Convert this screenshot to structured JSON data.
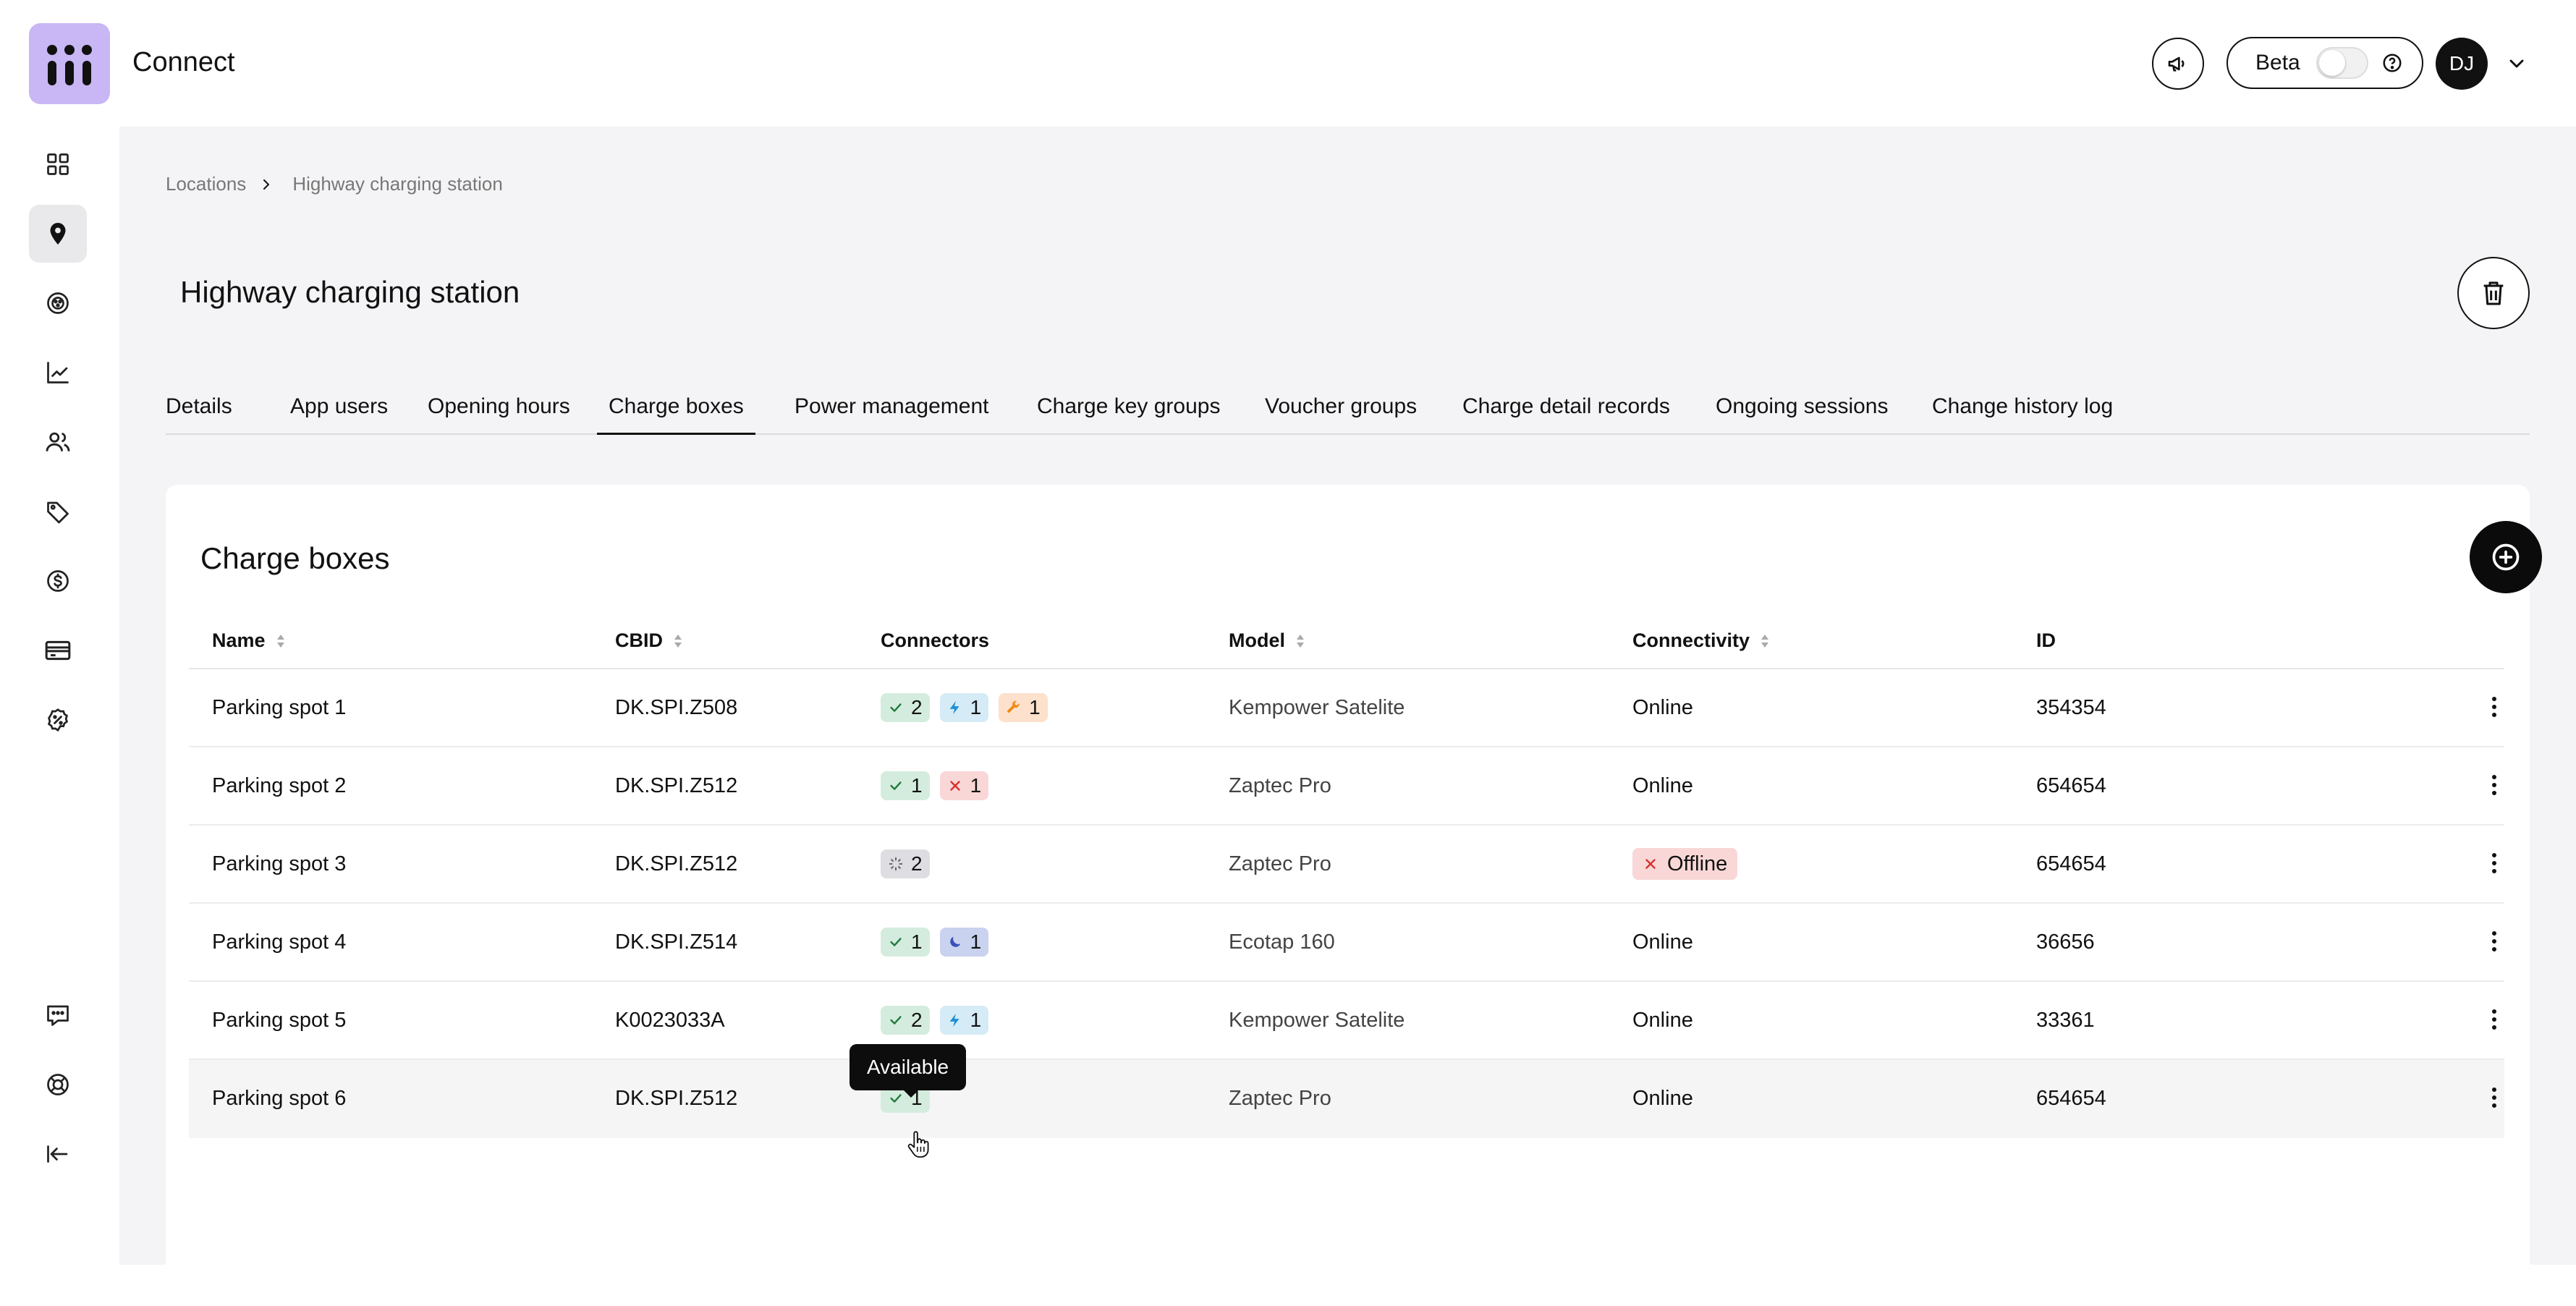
{
  "app": {
    "title": "Connect"
  },
  "header": {
    "beta_label": "Beta",
    "avatar_initials": "DJ"
  },
  "sidebar": {
    "items": [
      {
        "name": "dashboard",
        "active": false
      },
      {
        "name": "locations",
        "active": true
      },
      {
        "name": "chargers",
        "active": false
      },
      {
        "name": "analytics",
        "active": false
      },
      {
        "name": "users",
        "active": false
      },
      {
        "name": "tags",
        "active": false
      },
      {
        "name": "pricing",
        "active": false
      },
      {
        "name": "payments",
        "active": false
      },
      {
        "name": "discounts",
        "active": false
      },
      {
        "name": "feedback",
        "active": false
      },
      {
        "name": "support",
        "active": false
      },
      {
        "name": "collapse",
        "active": false
      }
    ]
  },
  "breadcrumb": {
    "root": "Locations",
    "current": "Highway charging station"
  },
  "page": {
    "title": "Highway charging station"
  },
  "tabs": [
    {
      "label": "Details"
    },
    {
      "label": "App users"
    },
    {
      "label": "Opening hours"
    },
    {
      "label": "Charge boxes",
      "active": true
    },
    {
      "label": "Power management"
    },
    {
      "label": "Charge key groups"
    },
    {
      "label": "Voucher groups"
    },
    {
      "label": "Charge detail records"
    },
    {
      "label": "Ongoing sessions"
    },
    {
      "label": "Change history log"
    }
  ],
  "card": {
    "title": "Charge boxes",
    "columns": {
      "name": "Name",
      "cbid": "CBID",
      "connectors": "Connectors",
      "model": "Model",
      "connectivity": "Connectivity",
      "id": "ID"
    },
    "rows": [
      {
        "name": "Parking spot 1",
        "cbid": "DK.SPI.Z508",
        "connectors": [
          {
            "status": "available",
            "count": "2"
          },
          {
            "status": "charging",
            "count": "1"
          },
          {
            "status": "faulted",
            "count": "1"
          }
        ],
        "model": "Kempower Satelite",
        "connectivity": "Online",
        "id": "354354"
      },
      {
        "name": "Parking spot 2",
        "cbid": "DK.SPI.Z512",
        "connectors": [
          {
            "status": "available",
            "count": "1"
          },
          {
            "status": "error",
            "count": "1"
          }
        ],
        "model": "Zaptec Pro",
        "connectivity": "Online",
        "id": "654654"
      },
      {
        "name": "Parking spot 3",
        "cbid": "DK.SPI.Z512",
        "connectors": [
          {
            "status": "unknown",
            "count": "2"
          }
        ],
        "model": "Zaptec Pro",
        "connectivity": "Offline",
        "id": "654654"
      },
      {
        "name": "Parking spot 4",
        "cbid": "DK.SPI.Z514",
        "connectors": [
          {
            "status": "available",
            "count": "1"
          },
          {
            "status": "suspended",
            "count": "1"
          }
        ],
        "model": "Ecotap 160",
        "connectivity": "Online",
        "id": "36656"
      },
      {
        "name": "Parking spot 5",
        "cbid": "K0023033A",
        "connectors": [
          {
            "status": "available",
            "count": "2"
          },
          {
            "status": "charging",
            "count": "1"
          }
        ],
        "model": "Kempower Satelite",
        "connectivity": "Online",
        "id": "33361"
      },
      {
        "name": "Parking spot 6",
        "cbid": "DK.SPI.Z512",
        "connectors": [
          {
            "status": "available",
            "count": "1"
          }
        ],
        "model": "Zaptec Pro",
        "connectivity": "Online",
        "id": "654654"
      }
    ]
  },
  "tooltip": {
    "text": "Available"
  },
  "colors": {
    "logo_bg": "#c9b6f5",
    "available": "#d4ecdd",
    "charging": "#d5ebf6",
    "faulted": "#fde1cc",
    "error": "#f9d7d7",
    "unknown": "#dedee2",
    "suspended": "#c9d2ef"
  }
}
